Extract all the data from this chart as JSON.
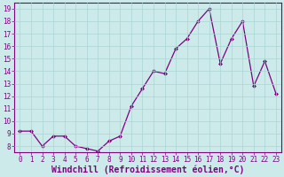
{
  "x": [
    0,
    1,
    2,
    3,
    4,
    5,
    6,
    7,
    8,
    9,
    10,
    11,
    12,
    13,
    14,
    15,
    16,
    17,
    18,
    19,
    20,
    21,
    22,
    23
  ],
  "y": [
    9.2,
    9.2,
    8.0,
    8.8,
    8.8,
    8.0,
    7.8,
    7.6,
    8.4,
    8.8,
    11.2,
    12.6,
    14.0,
    13.8,
    15.8,
    16.6,
    18.0,
    19.0,
    14.6,
    16.6,
    18.0,
    12.8,
    14.8,
    12.2
  ],
  "line_color": "#800080",
  "marker": "D",
  "marker_size": 2.0,
  "linewidth": 0.9,
  "xlabel": "Windchill (Refroidissement éolien,°C)",
  "xlabel_fontsize": 7,
  "ylim": [
    7.5,
    19.5
  ],
  "yticks": [
    8,
    9,
    10,
    11,
    12,
    13,
    14,
    15,
    16,
    17,
    18,
    19
  ],
  "xticks": [
    0,
    1,
    2,
    3,
    4,
    5,
    6,
    7,
    8,
    9,
    10,
    11,
    12,
    13,
    14,
    15,
    16,
    17,
    18,
    19,
    20,
    21,
    22,
    23
  ],
  "xtick_labels": [
    "0",
    "1",
    "2",
    "3",
    "4",
    "5",
    "6",
    "7",
    "8",
    "9",
    "10",
    "11",
    "12",
    "13",
    "14",
    "15",
    "16",
    "17",
    "18",
    "19",
    "20",
    "21",
    "22",
    "23"
  ],
  "grid_color": "#aad4d4",
  "background_color": "#cceaea",
  "tick_color": "#800080",
  "tick_fontsize": 5.5,
  "ylabel_fontsize": 5.5
}
